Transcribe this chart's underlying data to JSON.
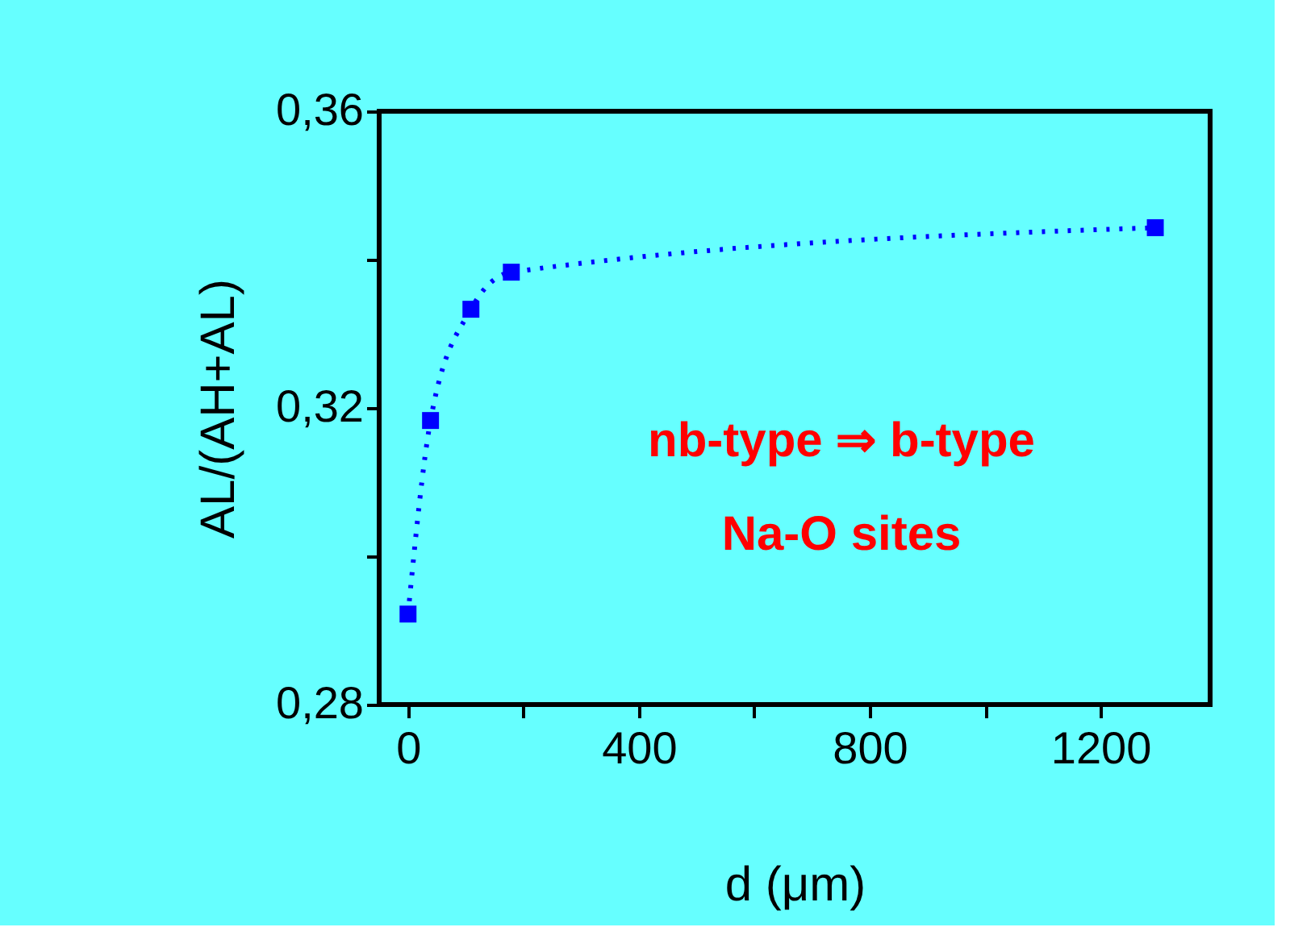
{
  "chart_data": {
    "type": "line",
    "xlabel": "d (μm)",
    "ylabel": "AL/(AH+AL)",
    "x": [
      0,
      39,
      109,
      179,
      1295
    ],
    "series": [
      {
        "color": "#0000ff",
        "values": [
          0.2922,
          0.3183,
          0.3333,
          0.3383,
          0.3443
        ]
      }
    ],
    "marker": "square",
    "line_style": "dotted",
    "grid": false,
    "xlim": [
      -50,
      1390
    ],
    "ylim": [
      0.28,
      0.36
    ],
    "xticks": [
      0,
      {
        "value": 200,
        "label": null
      },
      400,
      {
        "value": 600,
        "label": null
      },
      800,
      {
        "value": 1000,
        "label": null
      },
      1200
    ],
    "yticks": [
      {
        "value": 0.28,
        "label": "0,28"
      },
      {
        "value": 0.3,
        "label": null
      },
      {
        "value": 0.32,
        "label": "0,32"
      },
      {
        "value": 0.34,
        "label": null
      },
      {
        "value": 0.36,
        "label": "0,36"
      }
    ],
    "annotations": [
      "nb-type ⇒ b-type",
      "Na-O sites"
    ]
  }
}
